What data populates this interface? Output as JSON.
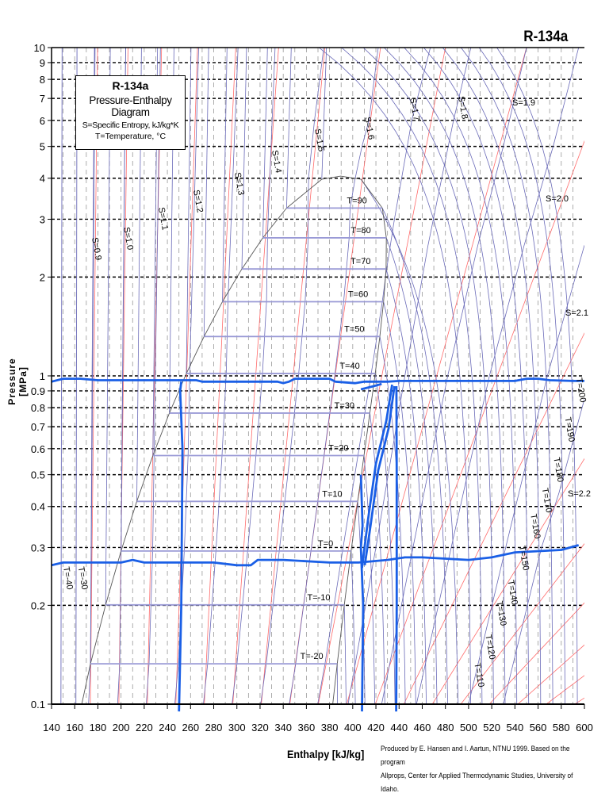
{
  "title": "R-134a",
  "legend": {
    "title": "R-134a",
    "subtitle": "Pressure-Enthalpy Diagram",
    "line1": "S=Specific Entropy, kJ/kg*K",
    "line2": "T=Temperature, °C"
  },
  "credits": [
    "Produced by E. Hansen and I. Aartun, NTNU 1999. Based on the program",
    "Allprops, Center for Applied Thermodynamic Studies, University of Idaho."
  ],
  "chart_data": {
    "type": "line",
    "title": "R-134a",
    "xlabel": "Enthalpy [kJ/kg]",
    "ylabel": "Pressure [MPa]",
    "xlim": [
      140,
      600
    ],
    "ylim": [
      0.1,
      10
    ],
    "yscale": "log",
    "grid": true,
    "x_ticks": [
      "140",
      "160",
      "180",
      "200",
      "220",
      "240",
      "260",
      "280",
      "300",
      "320",
      "340",
      "360",
      "380",
      "400",
      "420",
      "440",
      "460",
      "480",
      "500",
      "520",
      "540",
      "560",
      "580",
      "600"
    ],
    "y_ticks": [
      10,
      9,
      8,
      7,
      6,
      5,
      4,
      3,
      2,
      1,
      0.9,
      0.8,
      0.7,
      0.6,
      0.5,
      0.4,
      0.3,
      0.2,
      0.1
    ],
    "y_tick_labels": [
      "10",
      "9",
      "8",
      "7",
      "6",
      "5",
      "4",
      "3",
      "2",
      "1",
      "0.9",
      "0.8",
      "0.7",
      "0.6",
      "0.5",
      "0.4",
      "0.3",
      "0.2",
      "0.1"
    ],
    "colors": {
      "isentrope": "#6a6ab8",
      "isotherm_two_phase": "#9a9ad6",
      "red_lines": "#ff6b6b",
      "saturation": "#555555",
      "measured": "#1a5fe6",
      "grid_vertical": "#999999",
      "grid_horizontal": "#000000"
    },
    "critical_point": [
      389.6,
      4.059
    ],
    "saturation": [
      {
        "T": -26.4,
        "p": 0.1,
        "hf": 166.1,
        "hg": 382.7
      },
      {
        "T": -20,
        "p": 0.1327,
        "hf": 173.6,
        "hg": 386.6,
        "label": "T=-20"
      },
      {
        "T": -10,
        "p": 0.2006,
        "hf": 186.7,
        "hg": 392.7,
        "label": "T=-10"
      },
      {
        "T": 0,
        "p": 0.2928,
        "hf": 200.0,
        "hg": 398.6,
        "label": "T=0"
      },
      {
        "T": 10,
        "p": 0.4146,
        "hf": 213.6,
        "hg": 404.3,
        "label": "T=10"
      },
      {
        "T": 20,
        "p": 0.5717,
        "hf": 227.5,
        "hg": 409.7,
        "label": "T=20"
      },
      {
        "T": 30,
        "p": 0.7702,
        "hf": 241.7,
        "hg": 414.8,
        "label": "T=30"
      },
      {
        "T": 40,
        "p": 1.0166,
        "hf": 256.4,
        "hg": 419.4,
        "label": "T=40"
      },
      {
        "T": 50,
        "p": 1.3179,
        "hf": 271.6,
        "hg": 423.4,
        "label": "T=50"
      },
      {
        "T": 60,
        "p": 1.6818,
        "hf": 287.5,
        "hg": 426.6,
        "label": "T=60"
      },
      {
        "T": 70,
        "p": 2.1168,
        "hf": 304.3,
        "hg": 428.8,
        "label": "T=70"
      },
      {
        "T": 80,
        "p": 2.6332,
        "hf": 322.4,
        "hg": 429.0,
        "label": "T=80"
      },
      {
        "T": 90,
        "p": 3.2442,
        "hf": 342.9,
        "hg": 425.6,
        "label": "T=90"
      },
      {
        "T": 100,
        "p": 3.972,
        "hf": 373.3,
        "hg": 407.1
      }
    ],
    "liquid_isotherms": [
      {
        "T": -40,
        "h": 148.1,
        "label": "T=-40"
      },
      {
        "T": -30,
        "h": 161.0,
        "label": "T=-30"
      }
    ],
    "supercritical_isotherms": [
      {
        "T": 110,
        "label": "T=110"
      },
      {
        "T": 120,
        "label": "T=120"
      },
      {
        "T": 130,
        "label": "T=130"
      },
      {
        "T": 140,
        "label": "T=140"
      },
      {
        "T": 150,
        "label": "T=150"
      },
      {
        "T": 160,
        "label": "T=160"
      },
      {
        "T": 170,
        "label": "T=170"
      },
      {
        "T": 180,
        "label": "T=180"
      },
      {
        "T": 190,
        "label": "T=190"
      },
      {
        "T": 200,
        "label": "T=200"
      }
    ],
    "isentropes": [
      {
        "s": 0.9,
        "label": "S=0.9",
        "points": [
          [
            172,
            0.1
          ],
          [
            173.6,
            0.133
          ],
          [
            175,
            1
          ],
          [
            177,
            10
          ]
        ]
      },
      {
        "s": 1.0,
        "label": "S=1.0",
        "points": [
          [
            197,
            0.1
          ],
          [
            198.9,
            0.133
          ],
          [
            200,
            0.293
          ],
          [
            202,
            2
          ],
          [
            204,
            10
          ]
        ]
      },
      {
        "s": 1.1,
        "label": "S=1.1",
        "points": [
          [
            221.8,
            0.1
          ],
          [
            224.2,
            0.133
          ],
          [
            227.3,
            0.293
          ],
          [
            228.6,
            0.586
          ],
          [
            234,
            10
          ]
        ]
      },
      {
        "s": 1.2,
        "label": "S=1.2",
        "points": [
          [
            246.4,
            0.1
          ],
          [
            249.5,
            0.133
          ],
          [
            254.6,
            0.293
          ],
          [
            257.9,
            0.572
          ],
          [
            259.4,
            1.07
          ],
          [
            267,
            10
          ]
        ]
      },
      {
        "s": 1.3,
        "label": "S=1.3",
        "points": [
          [
            271.1,
            0.1
          ],
          [
            274.8,
            0.133
          ],
          [
            281.9,
            0.293
          ],
          [
            287.2,
            0.572
          ],
          [
            290.8,
            1.017
          ],
          [
            292.3,
            1.7
          ],
          [
            301,
            10
          ]
        ]
      },
      {
        "s": 1.4,
        "label": "S=1.4",
        "points": [
          [
            295.8,
            0.1
          ],
          [
            300.1,
            0.133
          ],
          [
            309.3,
            0.293
          ],
          [
            316.5,
            0.572
          ],
          [
            322.1,
            1.017
          ],
          [
            325.6,
            1.682
          ],
          [
            326.5,
            2.75
          ],
          [
            333,
            10
          ]
        ]
      },
      {
        "s": 1.5,
        "label": "S=1.5",
        "points": [
          [
            320.5,
            0.1
          ],
          [
            325.4,
            0.133
          ],
          [
            336.6,
            0.293
          ],
          [
            345.8,
            0.572
          ],
          [
            353.4,
            1.017
          ],
          [
            358.9,
            1.682
          ],
          [
            361.6,
            2.633
          ],
          [
            361.4,
            3.244
          ],
          [
            362,
            4.06
          ],
          [
            367,
            6
          ],
          [
            375,
            10
          ]
        ]
      },
      {
        "s": 1.6,
        "label": "S=1.6",
        "points": [
          [
            345.2,
            0.1
          ],
          [
            350.8,
            0.133
          ],
          [
            363.9,
            0.293
          ],
          [
            375.2,
            0.572
          ],
          [
            384.7,
            1.017
          ],
          [
            392.2,
            1.682
          ],
          [
            396.9,
            2.633
          ],
          [
            397.7,
            3.244
          ],
          [
            402,
            3.97
          ],
          [
            408,
            5
          ],
          [
            414,
            6
          ],
          [
            422,
            10
          ]
        ]
      },
      {
        "s": 1.7,
        "label": "S=1.7",
        "points": [
          [
            369.8,
            0.1
          ],
          [
            376.1,
            0.133
          ],
          [
            391.2,
            0.293
          ],
          [
            404.5,
            0.572
          ],
          [
            416,
            1.017
          ],
          [
            425.5,
            1.682
          ],
          [
            429.3,
            2.117
          ],
          [
            436,
            3
          ],
          [
            451,
            6
          ],
          [
            467,
            10
          ]
        ]
      },
      {
        "s": 1.8,
        "label": "S=1.8",
        "points": [
          [
            396,
            0.1
          ],
          [
            420,
            0.3
          ],
          [
            445,
            1
          ],
          [
            465,
            2.5
          ],
          [
            487,
            6
          ],
          [
            502,
            10
          ]
        ]
      },
      {
        "s": 1.9,
        "label": "S=1.9",
        "points": [
          [
            425,
            0.1
          ],
          [
            452,
            0.3
          ],
          [
            482,
            1
          ],
          [
            508,
            2.5
          ],
          [
            530,
            5
          ],
          [
            550,
            10
          ]
        ]
      },
      {
        "s": 2.0,
        "label": "S=2.0",
        "points": [
          [
            455,
            0.1
          ],
          [
            485,
            0.3
          ],
          [
            518,
            1
          ],
          [
            548,
            2.5
          ],
          [
            573,
            5
          ],
          [
            595,
            10
          ]
        ]
      },
      {
        "s": 2.1,
        "label": "S=2.1",
        "points": [
          [
            500,
            0.1
          ],
          [
            532,
            0.3
          ],
          [
            568,
            1
          ],
          [
            600,
            2.5
          ]
        ]
      },
      {
        "s": 2.2,
        "label": "S=2.2",
        "points": [
          [
            530,
            0.1
          ],
          [
            563,
            0.3
          ],
          [
            578,
            0.44
          ],
          [
            600,
            0.85
          ]
        ]
      }
    ],
    "red_lines": [
      [
        173.5,
        179.7
      ],
      [
        198.1,
        206
      ],
      [
        222.7,
        235
      ],
      [
        247.3,
        266
      ],
      [
        271.9,
        299
      ],
      [
        296.5,
        336
      ],
      [
        321.1,
        376
      ],
      [
        345.7,
        424
      ],
      [
        370.3,
        480
      ],
      [
        394.9,
        550
      ],
      [
        419.5,
        630
      ],
      [
        444.1,
        720
      ],
      [
        468.7,
        820
      ],
      [
        493.3,
        930
      ],
      [
        517.9,
        1050
      ],
      [
        542.5,
        1180
      ],
      [
        567.1,
        1320
      ],
      [
        591.7,
        1470
      ]
    ],
    "measured": [
      {
        "points": [
          [
            140,
            0.96
          ],
          [
            150,
            0.98
          ],
          [
            165,
            0.98
          ],
          [
            180,
            0.97
          ],
          [
            250,
            0.97
          ],
          [
            265,
            0.97
          ],
          [
            270,
            0.96
          ],
          [
            335,
            0.96
          ],
          [
            340,
            0.95
          ],
          [
            345,
            0.96
          ],
          [
            350,
            0.98
          ],
          [
            380,
            0.98
          ],
          [
            385,
            0.96
          ],
          [
            402,
            0.95
          ],
          [
            410,
            0.96
          ],
          [
            430,
            0.96
          ],
          [
            440,
            0.965
          ],
          [
            540,
            0.965
          ],
          [
            550,
            0.98
          ],
          [
            560,
            0.98
          ],
          [
            570,
            0.97
          ],
          [
            590,
            0.965
          ],
          [
            600,
            0.965
          ]
        ]
      },
      {
        "points": [
          [
            140,
            0.265
          ],
          [
            150,
            0.27
          ],
          [
            200,
            0.27
          ],
          [
            210,
            0.275
          ],
          [
            220,
            0.27
          ],
          [
            280,
            0.27
          ],
          [
            300,
            0.265
          ],
          [
            312,
            0.265
          ],
          [
            318,
            0.275
          ],
          [
            340,
            0.275
          ],
          [
            380,
            0.27
          ],
          [
            405,
            0.27
          ],
          [
            430,
            0.275
          ],
          [
            445,
            0.28
          ],
          [
            460,
            0.28
          ],
          [
            500,
            0.275
          ],
          [
            520,
            0.28
          ],
          [
            540,
            0.29
          ],
          [
            580,
            0.295
          ],
          [
            595,
            0.305
          ]
        ]
      },
      {
        "points": [
          [
            252,
            0.96
          ],
          [
            251,
            0.9
          ],
          [
            253,
            0.6
          ],
          [
            252,
            0.2
          ],
          [
            250,
            0.095
          ]
        ]
      },
      {
        "points": [
          [
            407,
            0.5
          ],
          [
            408.5,
            0.35
          ],
          [
            407,
            0.3
          ],
          [
            409,
            0.2
          ],
          [
            408,
            0.095
          ]
        ]
      },
      {
        "points": [
          [
            410.4,
            0.265
          ],
          [
            415,
            0.342
          ],
          [
            422,
            0.516
          ],
          [
            431,
            0.693
          ],
          [
            436,
            0.93
          ]
        ]
      },
      {
        "points": [
          [
            408,
            0.26
          ],
          [
            413,
            0.36
          ],
          [
            420,
            0.54
          ],
          [
            429,
            0.73
          ],
          [
            434,
            0.94
          ]
        ]
      },
      {
        "points": [
          [
            437.7,
            0.93
          ],
          [
            438,
            0.5
          ],
          [
            438,
            0.2
          ],
          [
            437.5,
            0.095
          ]
        ]
      },
      {
        "points": [
          [
            407,
            0.91
          ],
          [
            418,
            0.93
          ],
          [
            425,
            0.945
          ]
        ]
      }
    ]
  }
}
